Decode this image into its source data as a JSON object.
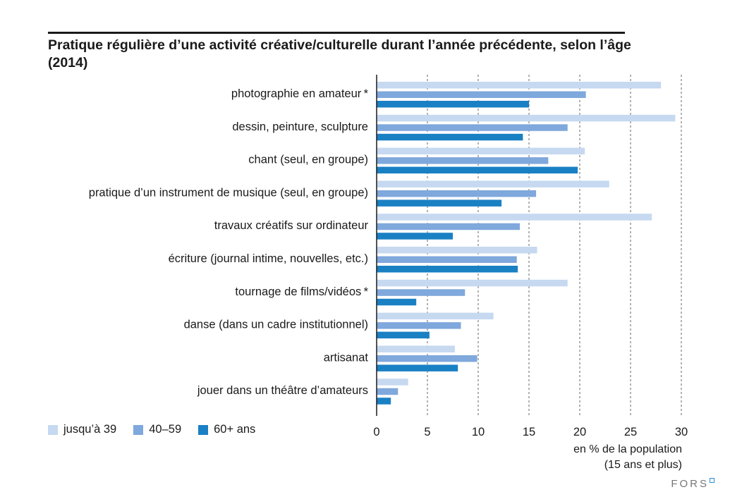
{
  "title": "Pratique régulière d’une activité créative/culturelle durant l’année précédente, selon l’âge (2014)",
  "logo_text": "FORS",
  "chart_data": {
    "type": "bar",
    "orientation": "horizontal",
    "title": "Pratique régulière d’une activité créative/culturelle durant l’année précédente, selon l’âge (2014)",
    "categories": [
      "photographie en amateur*",
      "dessin, peinture, sculpture",
      "chant (seul, en groupe)",
      "pratique d’un instrument de musique (seul, en groupe)",
      "travaux créatifs sur ordinateur",
      "écriture (journal intime, nouvelles, etc.)",
      "tournage de films/vidéos*",
      "danse (dans un cadre institutionnel)",
      "artisanat",
      "jouer dans un théâtre d’amateurs"
    ],
    "series": [
      {
        "name": "jusqu’à 39",
        "color": "#c6d9f1",
        "values": [
          28.0,
          29.4,
          20.5,
          22.9,
          27.1,
          15.8,
          18.8,
          11.5,
          7.7,
          3.1
        ]
      },
      {
        "name": "40–59",
        "color": "#7fa8dc",
        "values": [
          20.6,
          18.8,
          16.9,
          15.7,
          14.1,
          13.8,
          8.7,
          8.3,
          9.9,
          2.1
        ]
      },
      {
        "name": "60+ ans",
        "color": "#1a80c4",
        "values": [
          15.0,
          14.4,
          19.8,
          12.3,
          7.5,
          13.9,
          3.9,
          5.2,
          8.0,
          1.4
        ]
      }
    ],
    "xlim": [
      0,
      30
    ],
    "xticks": [
      "0",
      "5",
      "10",
      "15",
      "20",
      "25",
      "30"
    ],
    "xlabel": [
      "en % de la population",
      "(15 ans et plus)"
    ],
    "grid": "vertical dashed",
    "legend": "bottom-left"
  }
}
